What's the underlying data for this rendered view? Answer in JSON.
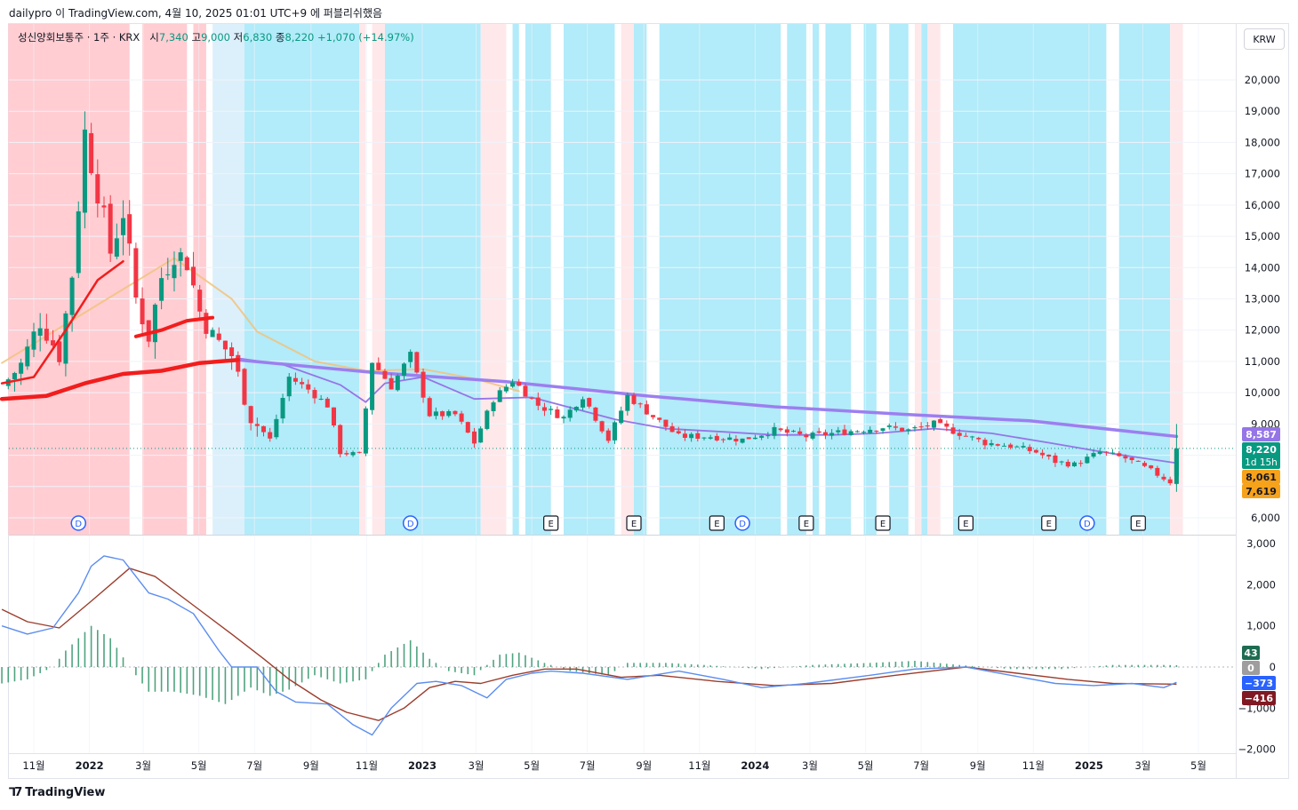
{
  "publisher_line": "dailypro 이 TradingView.com, 4월 10, 2025 01:01 UTC+9 에 퍼블리쉬했음",
  "legend": {
    "symbol": "성신양회보통주 · 1주 · KRX",
    "open_label": "시",
    "open": "7,340",
    "high_label": "고",
    "high": "9,000",
    "low_label": "저",
    "low": "6,830",
    "close_label": "종",
    "close": "8,220",
    "change": "+1,070 (+14.97%)"
  },
  "currency": "KRW",
  "footer": {
    "logo": "TradingView"
  },
  "colors": {
    "up": "#089981",
    "down": "#f23645",
    "band_red": "#ffcdd2",
    "band_pink": "#ffe8ea",
    "band_cyan": "#b2ebf9",
    "band_lightblue": "#dcf0fb",
    "ma_red": "#f21d1d",
    "ma_orange": "#f2c27d",
    "ma_purple_thin": "#9575e8",
    "ma_purple_thick": "#9c7ff0",
    "macd_blue": "#5b8def",
    "signal_brown": "#9c3d2d",
    "hist_green": "#3d9a72"
  },
  "chart_data": {
    "type": "candlestick",
    "interval": "1 week",
    "currency": "KRW",
    "x_ticks": [
      "11월",
      "2022",
      "3월",
      "5월",
      "7월",
      "9월",
      "11월",
      "2023",
      "3월",
      "5월",
      "7월",
      "9월",
      "11월",
      "2024",
      "3월",
      "5월",
      "7월",
      "9월",
      "11월",
      "2025",
      "3월",
      "5월"
    ],
    "x_tick_dates": [
      "2021-11-01",
      "2022-01-01",
      "2022-03-01",
      "2022-05-01",
      "2022-07-01",
      "2022-09-01",
      "2022-11-01",
      "2023-01-01",
      "2023-03-01",
      "2023-05-01",
      "2023-07-01",
      "2023-09-01",
      "2023-11-01",
      "2024-01-01",
      "2024-03-01",
      "2024-05-01",
      "2024-07-01",
      "2024-09-01",
      "2024-11-01",
      "2025-01-01",
      "2025-03-01",
      "2025-05-01"
    ],
    "y_ticks": [
      "6,000",
      "9,000",
      "10,000",
      "11,000",
      "12,000",
      "13,000",
      "14,000",
      "15,000",
      "16,000",
      "17,000",
      "18,000",
      "19,000",
      "20,000"
    ],
    "y_range": [
      5600,
      21000
    ],
    "last_bar": {
      "open": 7340,
      "high": 9000,
      "low": 6830,
      "close": 8220
    },
    "close_path": [
      [
        "2021-09-27",
        10200
      ],
      [
        "2021-10-18",
        10900
      ],
      [
        "2021-11-08",
        12300
      ],
      [
        "2021-11-29",
        11200
      ],
      [
        "2021-12-13",
        13800
      ],
      [
        "2021-12-27",
        18300
      ],
      [
        "2022-01-10",
        16500
      ],
      [
        "2022-01-24",
        14500
      ],
      [
        "2022-02-07",
        15800
      ],
      [
        "2022-02-21",
        13000
      ],
      [
        "2022-03-07",
        11800
      ],
      [
        "2022-03-21",
        13700
      ],
      [
        "2022-04-04",
        14500
      ],
      [
        "2022-04-18",
        14200
      ],
      [
        "2022-05-02",
        12600
      ],
      [
        "2022-05-16",
        11800
      ],
      [
        "2022-06-06",
        11200
      ],
      [
        "2022-06-27",
        9200
      ],
      [
        "2022-07-18",
        8500
      ],
      [
        "2022-08-08",
        10500
      ],
      [
        "2022-08-29",
        10100
      ],
      [
        "2022-09-19",
        9600
      ],
      [
        "2022-10-03",
        8100
      ],
      [
        "2022-10-24",
        8000
      ],
      [
        "2022-11-07",
        11000
      ],
      [
        "2022-11-28",
        10200
      ],
      [
        "2022-12-19",
        11200
      ],
      [
        "2023-01-09",
        9300
      ],
      [
        "2023-02-06",
        9300
      ],
      [
        "2023-02-27",
        8400
      ],
      [
        "2023-03-20",
        9800
      ],
      [
        "2023-04-10",
        10400
      ],
      [
        "2023-05-08",
        9600
      ],
      [
        "2023-06-05",
        9200
      ],
      [
        "2023-06-26",
        9900
      ],
      [
        "2023-07-24",
        8500
      ],
      [
        "2023-08-14",
        9900
      ],
      [
        "2023-09-04",
        9400
      ],
      [
        "2023-10-09",
        8600
      ],
      [
        "2023-11-13",
        8600
      ],
      [
        "2023-12-18",
        8500
      ],
      [
        "2024-01-22",
        8800
      ],
      [
        "2024-02-26",
        8600
      ],
      [
        "2024-03-25",
        8700
      ],
      [
        "2024-04-22",
        8800
      ],
      [
        "2024-05-20",
        8900
      ],
      [
        "2024-06-17",
        8800
      ],
      [
        "2024-07-15",
        9000
      ],
      [
        "2024-08-12",
        8700
      ],
      [
        "2024-09-09",
        8400
      ],
      [
        "2024-10-07",
        8300
      ],
      [
        "2024-11-04",
        8100
      ],
      [
        "2024-11-25",
        7800
      ],
      [
        "2024-12-16",
        7700
      ],
      [
        "2025-01-13",
        8100
      ],
      [
        "2025-02-10",
        7900
      ],
      [
        "2025-03-10",
        7500
      ],
      [
        "2025-03-31",
        7150
      ],
      [
        "2025-04-07",
        8220
      ]
    ],
    "moving_averages": [
      {
        "color": "ma_red_thin",
        "points": [
          [
            "2021-09-27",
            10300
          ],
          [
            "2021-11-01",
            10500
          ],
          [
            "2021-12-06",
            12000
          ],
          [
            "2022-01-10",
            13600
          ],
          [
            "2022-02-07",
            14200
          ]
        ]
      },
      {
        "color": "ma_red_thick_break",
        "points": [
          [
            "2022-02-21",
            11800
          ],
          [
            "2022-03-21",
            12000
          ],
          [
            "2022-04-18",
            12300
          ],
          [
            "2022-05-16",
            12400
          ]
        ]
      },
      {
        "color": "ma_red_thick",
        "points": [
          [
            "2021-09-27",
            9800
          ],
          [
            "2021-11-15",
            9900
          ],
          [
            "2021-12-27",
            10300
          ],
          [
            "2022-02-07",
            10600
          ],
          [
            "2022-03-21",
            10700
          ],
          [
            "2022-05-02",
            10950
          ],
          [
            "2022-06-13",
            11050
          ]
        ]
      },
      {
        "color": "ma_orange",
        "points": [
          [
            "2021-09-27",
            10950
          ],
          [
            "2022-04-04",
            14300
          ],
          [
            "2022-06-06",
            13000
          ],
          [
            "2022-07-04",
            11950
          ],
          [
            "2022-09-05",
            11000
          ],
          [
            "2022-10-31",
            10700
          ],
          [
            "2023-01-02",
            10750
          ],
          [
            "2023-02-27",
            10450
          ],
          [
            "2023-04-17",
            10050
          ]
        ]
      },
      {
        "color": "ma_purple_thin",
        "points": [
          [
            "2022-06-13",
            11100
          ],
          [
            "2022-08-01",
            10900
          ],
          [
            "2022-10-03",
            10250
          ],
          [
            "2022-10-31",
            9700
          ],
          [
            "2022-11-21",
            10300
          ],
          [
            "2023-01-02",
            10500
          ],
          [
            "2023-02-27",
            9800
          ],
          [
            "2023-05-01",
            9850
          ],
          [
            "2023-07-31",
            9150
          ],
          [
            "2023-09-25",
            8850
          ],
          [
            "2023-11-27",
            8750
          ],
          [
            "2024-01-22",
            8650
          ],
          [
            "2024-03-25",
            8650
          ],
          [
            "2024-05-13",
            8700
          ],
          [
            "2024-07-15",
            8850
          ],
          [
            "2024-09-16",
            8700
          ],
          [
            "2024-11-18",
            8400
          ],
          [
            "2025-01-27",
            8050
          ],
          [
            "2025-04-07",
            7750
          ]
        ]
      },
      {
        "color": "ma_purple_thick",
        "points": [
          [
            "2022-06-13",
            11050
          ],
          [
            "2022-11-07",
            10650
          ],
          [
            "2023-04-03",
            10350
          ],
          [
            "2023-09-04",
            9900
          ],
          [
            "2024-01-22",
            9550
          ],
          [
            "2024-06-17",
            9300
          ],
          [
            "2024-10-28",
            9100
          ],
          [
            "2025-04-07",
            8600
          ]
        ]
      }
    ],
    "price_labels": [
      {
        "value": 8587,
        "text": "8,587",
        "color": "#9575e8"
      },
      {
        "value": 8220,
        "text": "8,220",
        "sub": "1d 15h",
        "color": "#089981"
      },
      {
        "value": 8061,
        "text": "8,061",
        "color": "#f7a21b"
      },
      {
        "value": 7619,
        "text": "7,619",
        "color": "#f7a21b"
      }
    ],
    "bands": [
      [
        "2021-10-04",
        "2022-02-14",
        "band_red"
      ],
      [
        "2022-02-28",
        "2022-04-18",
        "band_red"
      ],
      [
        "2022-04-25",
        "2022-05-09",
        "band_red"
      ],
      [
        "2022-05-16",
        "2022-06-20",
        "band_lightblue"
      ],
      [
        "2022-06-20",
        "2022-10-24",
        "band_cyan"
      ],
      [
        "2022-10-24",
        "2022-10-31",
        "band_pink"
      ],
      [
        "2022-11-07",
        "2022-11-21",
        "band_pink"
      ],
      [
        "2022-11-21",
        "2023-03-06",
        "band_cyan"
      ],
      [
        "2023-03-06",
        "2023-04-03",
        "band_pink"
      ],
      [
        "2023-04-10",
        "2023-04-17",
        "band_cyan"
      ],
      [
        "2023-04-24",
        "2023-05-22",
        "band_cyan"
      ],
      [
        "2023-06-05",
        "2023-07-31",
        "band_cyan"
      ],
      [
        "2023-08-07",
        "2023-08-21",
        "band_pink"
      ],
      [
        "2023-08-21",
        "2023-09-04",
        "band_cyan"
      ],
      [
        "2023-09-18",
        "2024-01-29",
        "band_cyan"
      ],
      [
        "2024-02-05",
        "2024-02-26",
        "band_cyan"
      ],
      [
        "2024-03-04",
        "2024-03-11",
        "band_cyan"
      ],
      [
        "2024-03-18",
        "2024-04-15",
        "band_cyan"
      ],
      [
        "2024-04-29",
        "2024-05-13",
        "band_cyan"
      ],
      [
        "2024-05-27",
        "2024-06-17",
        "band_cyan"
      ],
      [
        "2024-06-24",
        "2024-07-01",
        "band_pink"
      ],
      [
        "2024-07-01",
        "2024-07-08",
        "band_cyan"
      ],
      [
        "2024-07-08",
        "2024-07-22",
        "band_pink"
      ],
      [
        "2024-08-05",
        "2025-01-20",
        "band_cyan"
      ],
      [
        "2025-02-03",
        "2025-03-31",
        "band_cyan"
      ],
      [
        "2025-03-31",
        "2025-04-14",
        "band_pink"
      ]
    ],
    "event_markers": [
      [
        "2021-12-20",
        "D"
      ],
      [
        "2022-12-19",
        "D"
      ],
      [
        "2023-05-22",
        "E"
      ],
      [
        "2023-08-21",
        "E"
      ],
      [
        "2023-11-20",
        "E"
      ],
      [
        "2023-12-18",
        "D"
      ],
      [
        "2024-02-26",
        "E"
      ],
      [
        "2024-05-20",
        "E"
      ],
      [
        "2024-08-19",
        "E"
      ],
      [
        "2024-11-18",
        "E"
      ],
      [
        "2024-12-30",
        "D"
      ],
      [
        "2025-02-24",
        "E"
      ]
    ],
    "macd": {
      "y_ticks": [
        "−2,000",
        "−1,000",
        "0",
        "1,000",
        "2,000",
        "3,000"
      ],
      "y_range": [
        -2100,
        3050
      ],
      "macd_line": [
        [
          "2021-09-27",
          1000
        ],
        [
          "2021-10-25",
          800
        ],
        [
          "2021-11-22",
          950
        ],
        [
          "2021-12-20",
          1800
        ],
        [
          "2022-01-03",
          2450
        ],
        [
          "2022-01-17",
          2700
        ],
        [
          "2022-02-07",
          2600
        ],
        [
          "2022-03-07",
          1800
        ],
        [
          "2022-03-28",
          1650
        ],
        [
          "2022-04-25",
          1300
        ],
        [
          "2022-05-23",
          400
        ],
        [
          "2022-06-06",
          0
        ],
        [
          "2022-07-04",
          0
        ],
        [
          "2022-07-25",
          -600
        ],
        [
          "2022-08-15",
          -850
        ],
        [
          "2022-09-19",
          -900
        ],
        [
          "2022-10-17",
          -1400
        ],
        [
          "2022-11-07",
          -1650
        ],
        [
          "2022-11-28",
          -1000
        ],
        [
          "2022-12-26",
          -400
        ],
        [
          "2023-01-16",
          -350
        ],
        [
          "2023-02-13",
          -450
        ],
        [
          "2023-03-13",
          -750
        ],
        [
          "2023-04-03",
          -300
        ],
        [
          "2023-05-01",
          -150
        ],
        [
          "2023-05-22",
          -100
        ],
        [
          "2023-06-26",
          -150
        ],
        [
          "2023-08-14",
          -300
        ],
        [
          "2023-10-09",
          -100
        ],
        [
          "2023-11-27",
          -300
        ],
        [
          "2024-01-08",
          -500
        ],
        [
          "2024-02-26",
          -400
        ],
        [
          "2024-05-06",
          -200
        ],
        [
          "2024-06-24",
          -50
        ],
        [
          "2024-08-19",
          0
        ],
        [
          "2024-10-07",
          -200
        ],
        [
          "2024-11-25",
          -400
        ],
        [
          "2025-01-06",
          -450
        ],
        [
          "2025-02-17",
          -400
        ],
        [
          "2025-03-24",
          -500
        ],
        [
          "2025-04-07",
          -373
        ]
      ],
      "signal_line": [
        [
          "2021-09-27",
          1400
        ],
        [
          "2021-10-25",
          1100
        ],
        [
          "2021-11-29",
          950
        ],
        [
          "2022-01-03",
          1600
        ],
        [
          "2022-02-14",
          2400
        ],
        [
          "2022-03-14",
          2200
        ],
        [
          "2022-04-25",
          1500
        ],
        [
          "2022-06-06",
          800
        ],
        [
          "2022-07-11",
          200
        ],
        [
          "2022-08-08",
          -300
        ],
        [
          "2022-09-12",
          -800
        ],
        [
          "2022-10-10",
          -1100
        ],
        [
          "2022-11-14",
          -1300
        ],
        [
          "2022-12-12",
          -1000
        ],
        [
          "2023-01-09",
          -500
        ],
        [
          "2023-02-06",
          -350
        ],
        [
          "2023-03-06",
          -400
        ],
        [
          "2023-04-10",
          -200
        ],
        [
          "2023-05-15",
          -50
        ],
        [
          "2023-06-19",
          -50
        ],
        [
          "2023-08-07",
          -250
        ],
        [
          "2023-09-18",
          -200
        ],
        [
          "2023-11-20",
          -350
        ],
        [
          "2024-01-22",
          -450
        ],
        [
          "2024-03-25",
          -400
        ],
        [
          "2024-06-03",
          -200
        ],
        [
          "2024-08-19",
          0
        ],
        [
          "2024-10-14",
          -150
        ],
        [
          "2024-12-09",
          -300
        ],
        [
          "2025-01-27",
          -400
        ],
        [
          "2025-04-07",
          -416
        ]
      ],
      "histogram": [
        [
          "2021-09-27",
          -400
        ],
        [
          "2021-10-25",
          -300
        ],
        [
          "2021-11-22",
          0
        ],
        [
          "2021-12-06",
          400
        ],
        [
          "2022-01-03",
          1000
        ],
        [
          "2022-01-24",
          700
        ],
        [
          "2022-02-14",
          0
        ],
        [
          "2022-03-07",
          -600
        ],
        [
          "2022-04-04",
          -600
        ],
        [
          "2022-05-02",
          -700
        ],
        [
          "2022-05-30",
          -900
        ],
        [
          "2022-06-27",
          -500
        ],
        [
          "2022-07-18",
          -700
        ],
        [
          "2022-08-08",
          -550
        ],
        [
          "2022-09-05",
          -200
        ],
        [
          "2022-10-03",
          -400
        ],
        [
          "2022-10-31",
          -300
        ],
        [
          "2022-11-21",
          300
        ],
        [
          "2022-12-19",
          650
        ],
        [
          "2023-01-09",
          200
        ],
        [
          "2023-01-30",
          -100
        ],
        [
          "2023-02-27",
          -200
        ],
        [
          "2023-03-27",
          300
        ],
        [
          "2023-04-17",
          350
        ],
        [
          "2023-05-15",
          100
        ],
        [
          "2023-06-12",
          -100
        ],
        [
          "2023-07-24",
          -200
        ],
        [
          "2023-08-14",
          100
        ],
        [
          "2023-09-25",
          100
        ],
        [
          "2023-11-06",
          50
        ],
        [
          "2024-01-08",
          -50
        ],
        [
          "2024-03-04",
          50
        ],
        [
          "2024-05-06",
          100
        ],
        [
          "2024-06-24",
          150
        ],
        [
          "2024-08-12",
          50
        ],
        [
          "2024-10-07",
          -50
        ],
        [
          "2024-12-02",
          -50
        ],
        [
          "2025-01-27",
          50
        ],
        [
          "2025-03-24",
          50
        ],
        [
          "2025-04-07",
          43
        ]
      ],
      "labels": [
        {
          "value": 43,
          "text": "43",
          "color": "#1e6b52"
        },
        {
          "value": 0,
          "text": "0",
          "color": "#9e9e9e"
        },
        {
          "value": -373,
          "text": "−373",
          "color": "#2962ff"
        },
        {
          "value": -416,
          "text": "−416",
          "color": "#801922"
        }
      ]
    }
  }
}
